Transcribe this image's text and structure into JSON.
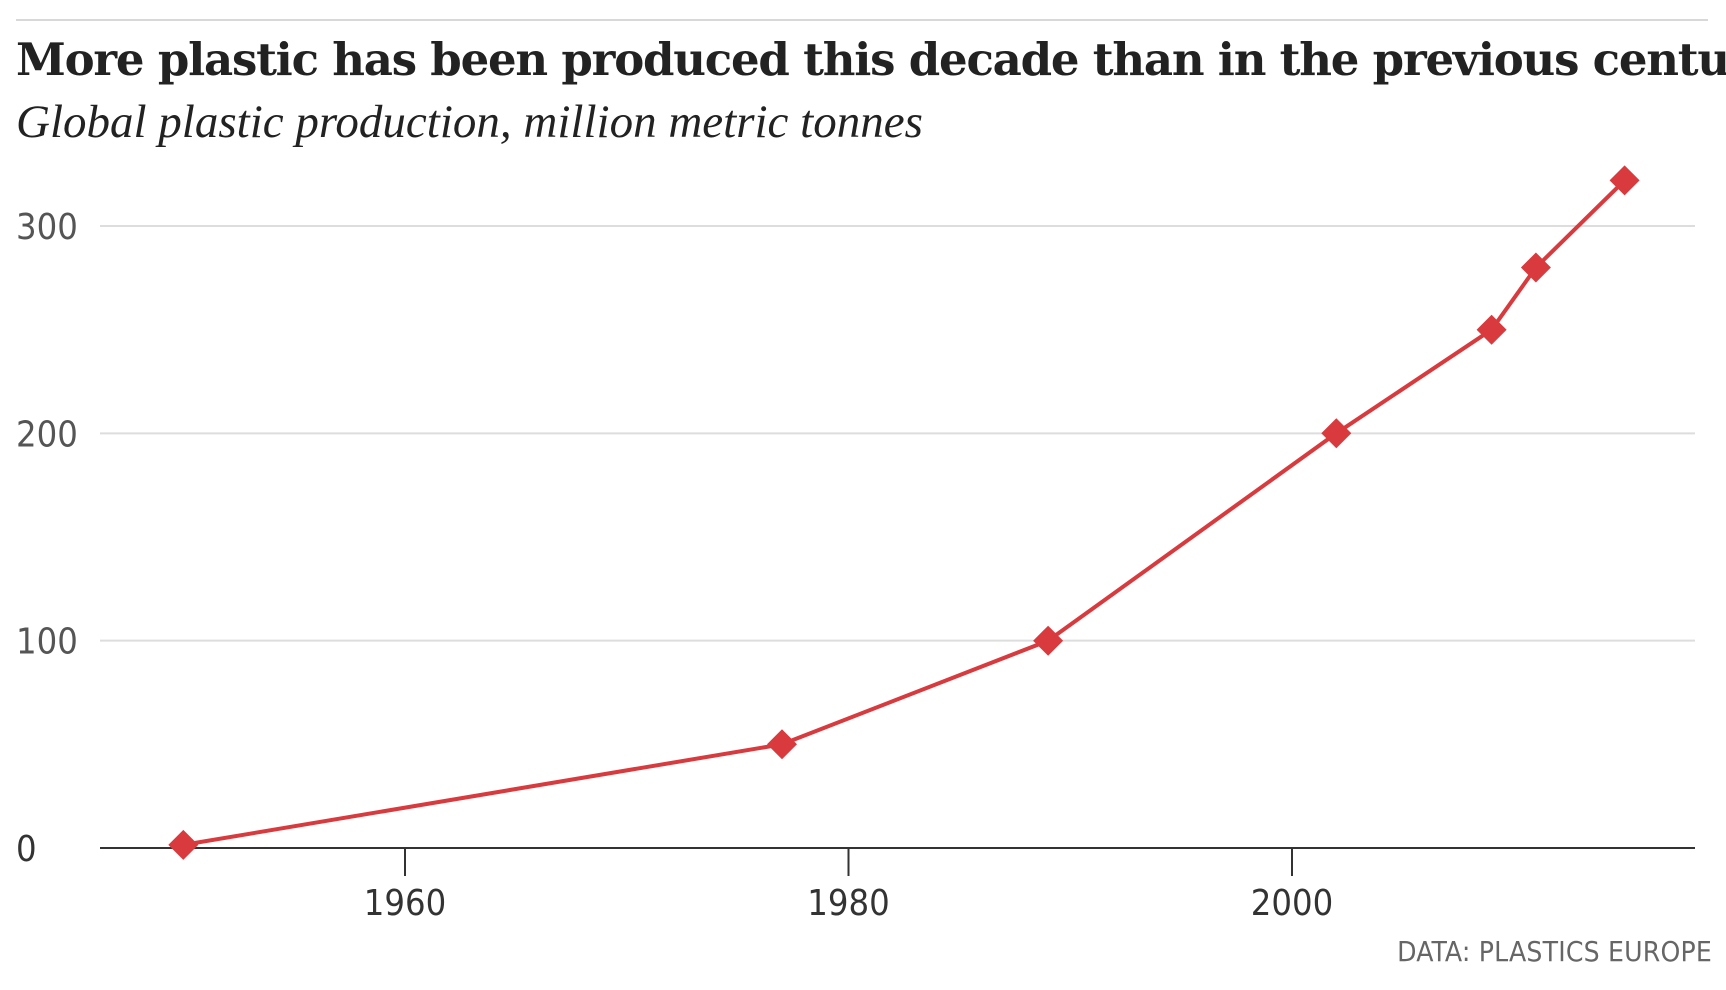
{
  "header": {
    "title": "More plastic has been produced this decade than in the previous century",
    "subtitle": "Global plastic production, million metric tonnes"
  },
  "footer": {
    "source": "DATA: PLASTICS EUROPE"
  },
  "colors": {
    "series": "#d93a3d",
    "grid": "#dddddd",
    "axis": "#333333",
    "text": "#222222"
  },
  "chart_data": {
    "type": "line",
    "title": "More plastic has been produced this decade than in the previous century",
    "subtitle": "Global plastic production, million metric tonnes",
    "xlabel": "",
    "ylabel": "",
    "xlim": [
      1946.7,
      2018.5
    ],
    "ylim": [
      0,
      300
    ],
    "x_ticks": [
      1960,
      1980,
      2000
    ],
    "y_ticks": [
      0,
      100,
      200,
      300
    ],
    "grid": true,
    "marker": "diamond",
    "series": [
      {
        "x": [
          1950,
          1977,
          1989,
          2002,
          2009,
          2011,
          2015
        ],
        "y": [
          1.5,
          50,
          100,
          200,
          250,
          280,
          322
        ]
      }
    ]
  }
}
